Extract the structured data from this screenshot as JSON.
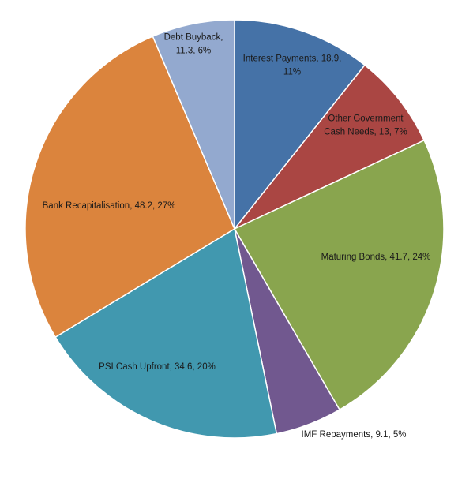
{
  "chart_data": {
    "type": "pie",
    "title": "",
    "slices": [
      {
        "label": "Interest Payments",
        "value": 18.9,
        "percent": "11%",
        "color": "#4572a7"
      },
      {
        "label": "Other Government Cash Needs",
        "value": 13,
        "percent": "7%",
        "color": "#aa4643"
      },
      {
        "label": "Maturing Bonds",
        "value": 41.7,
        "percent": "24%",
        "color": "#89a54e"
      },
      {
        "label": "IMF Repayments",
        "value": 9.1,
        "percent": "5%",
        "color": "#71588f"
      },
      {
        "label": "PSI Cash Upfront",
        "value": 34.6,
        "percent": "20%",
        "color": "#4198af"
      },
      {
        "label": "Bank Recapitalisation",
        "value": 48.2,
        "percent": "27%",
        "color": "#db843d"
      },
      {
        "label": "Debt Buyback",
        "value": 11.3,
        "percent": "6%",
        "color": "#93a9cf"
      }
    ],
    "labels_text": [
      [
        "Interest Payments, 18.9,",
        "11%"
      ],
      [
        "Other Government",
        "Cash Needs, 13, 7%"
      ],
      [
        "Maturing Bonds, 41.7, 24%"
      ],
      [
        "IMF Repayments, 9.1, 5%"
      ],
      [
        "PSI Cash Upfront, 34.6, 20%"
      ],
      [
        "Bank Recapitalisation, 48.2, 27%"
      ],
      [
        "Debt Buyback,",
        "11.3, 6%"
      ]
    ],
    "start_angle": "12 o'clock",
    "direction": "clockwise",
    "legend": "none"
  }
}
